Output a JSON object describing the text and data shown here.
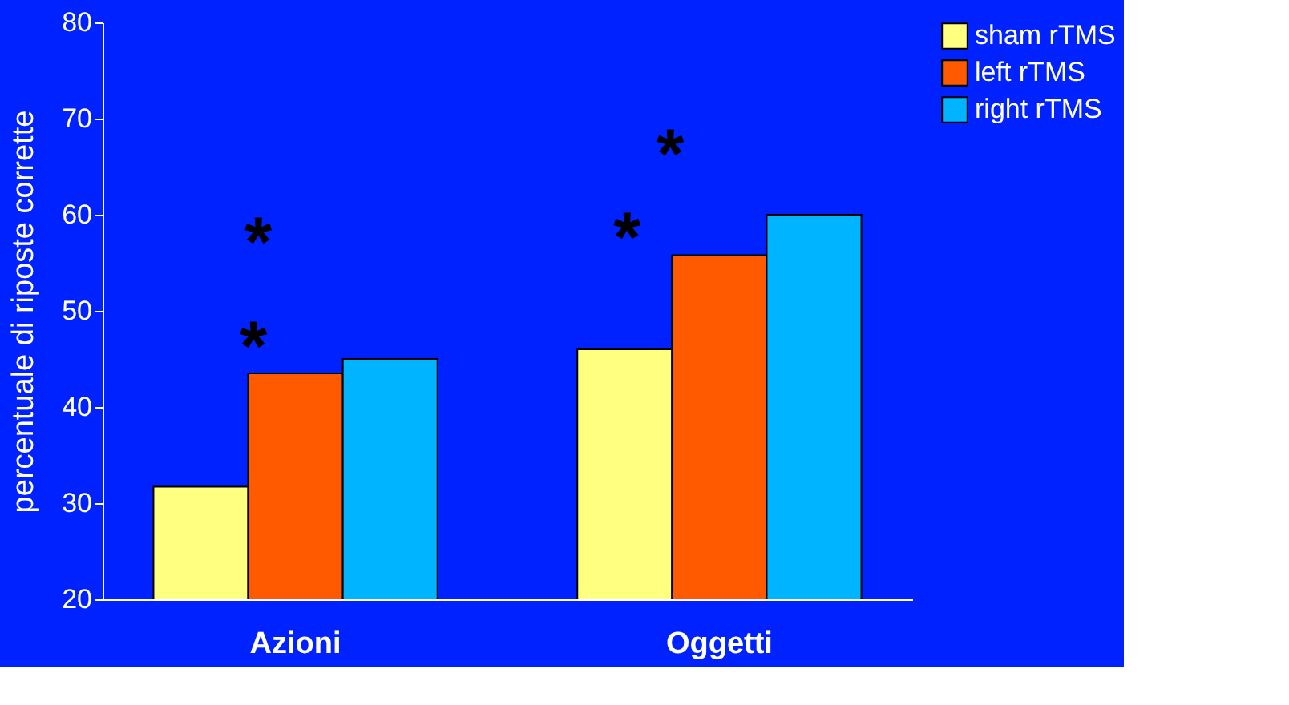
{
  "chart_data": {
    "type": "bar",
    "ylabel": "percentuale di riposte corrette",
    "categories": [
      "Azioni",
      "Oggetti"
    ],
    "series": [
      {
        "name": "sham rTMS",
        "color": "#ffff80",
        "values": [
          31.7,
          46
        ]
      },
      {
        "name": "left rTMS",
        "color": "#ff5a00",
        "values": [
          43.5,
          55.8
        ]
      },
      {
        "name": "right rTMS",
        "color": "#00b4ff",
        "values": [
          45,
          60
        ]
      }
    ],
    "ylim": [
      20,
      80
    ],
    "yticks": [
      20,
      30,
      40,
      50,
      60,
      70,
      80
    ],
    "grid": false,
    "legend": "right",
    "annotations": [
      "*",
      "*",
      "*",
      "*"
    ]
  }
}
